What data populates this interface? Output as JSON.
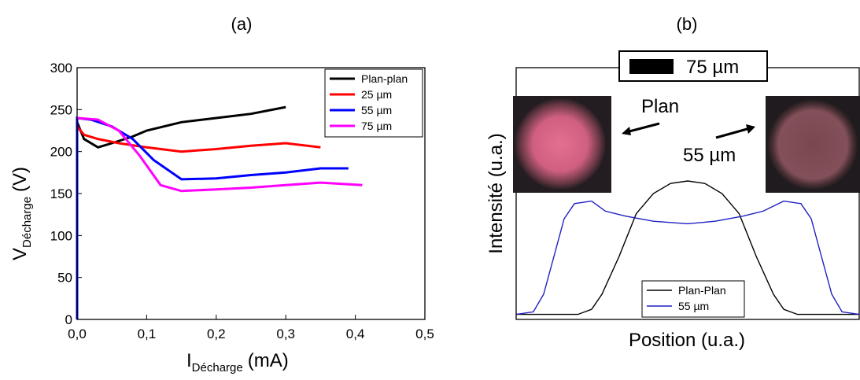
{
  "chart_data": [
    {
      "type": "line",
      "title": "(a)",
      "xlabel": {
        "main": "I",
        "sub": "Décharge",
        "unit": "(mA)"
      },
      "ylabel": {
        "main": "V",
        "sub": "Décharge",
        "unit": "(V)"
      },
      "xlim": [
        0,
        0.5
      ],
      "ylim": [
        0,
        300
      ],
      "xticks": [
        {
          "value": 0,
          "label": "0,0"
        },
        {
          "value": 0.1,
          "label": "0,1"
        },
        {
          "value": 0.2,
          "label": "0,2"
        },
        {
          "value": 0.3,
          "label": "0,3"
        },
        {
          "value": 0.4,
          "label": "0,4"
        },
        {
          "value": 0.5,
          "label": "0,5"
        }
      ],
      "yticks": [
        0,
        50,
        100,
        150,
        200,
        250,
        300
      ],
      "legend": "top-right",
      "series": [
        {
          "name": "Plan-plan",
          "color": "#000000",
          "x": [
            0,
            0.01,
            0.03,
            0.05,
            0.08,
            0.1,
            0.15,
            0.2,
            0.25,
            0.3
          ],
          "values": [
            235,
            215,
            205,
            210,
            218,
            225,
            235,
            240,
            245,
            253
          ]
        },
        {
          "name": "25 µm",
          "color": "#ff0000",
          "x": [
            0,
            0.01,
            0.03,
            0.06,
            0.1,
            0.15,
            0.2,
            0.25,
            0.3,
            0.35
          ],
          "values": [
            230,
            220,
            215,
            210,
            205,
            200,
            203,
            207,
            210,
            205
          ]
        },
        {
          "name": "55 µm",
          "color": "#0000ff",
          "x": [
            0,
            0,
            0.02,
            0.05,
            0.08,
            0.11,
            0.15,
            0.2,
            0.25,
            0.3,
            0.35,
            0.39
          ],
          "values": [
            0,
            240,
            238,
            230,
            215,
            190,
            167,
            168,
            172,
            175,
            180,
            180
          ]
        },
        {
          "name": "75 µm",
          "color": "#ff00ff",
          "x": [
            0,
            0.03,
            0.06,
            0.09,
            0.12,
            0.15,
            0.2,
            0.25,
            0.3,
            0.35,
            0.41
          ],
          "values": [
            240,
            238,
            225,
            195,
            160,
            153,
            155,
            157,
            160,
            163,
            160
          ]
        }
      ]
    },
    {
      "type": "line",
      "title": "(b)",
      "xlabel": {
        "main": "Position (u.a.)"
      },
      "ylabel": {
        "main": "Intensité (u.a.)"
      },
      "xlim": [
        0,
        100
      ],
      "ylim": [
        0,
        100
      ],
      "legend": "bottom-center",
      "annotations": {
        "scale": "75 µm",
        "left": "Plan",
        "right": "55 µm"
      },
      "series": [
        {
          "name": "Plan-Plan",
          "color": "#000000",
          "x": [
            0,
            10,
            18,
            22,
            25,
            30,
            35,
            40,
            45,
            50,
            55,
            60,
            65,
            70,
            75,
            78,
            82,
            90,
            100
          ],
          "values": [
            2,
            2,
            2,
            4,
            10,
            25,
            42,
            50,
            54,
            55,
            54,
            50,
            42,
            25,
            10,
            4,
            2,
            2,
            2
          ]
        },
        {
          "name": "55 µm",
          "color": "#1f1fc0",
          "x": [
            0,
            5,
            8,
            11,
            14,
            17,
            22,
            26,
            32,
            40,
            50,
            58,
            66,
            72,
            78,
            83,
            86,
            89,
            92,
            95,
            100
          ],
          "values": [
            2,
            3,
            10,
            25,
            40,
            46,
            47,
            43,
            41,
            39,
            38,
            39,
            41,
            43,
            47,
            46,
            40,
            25,
            10,
            3,
            2
          ]
        }
      ]
    }
  ]
}
